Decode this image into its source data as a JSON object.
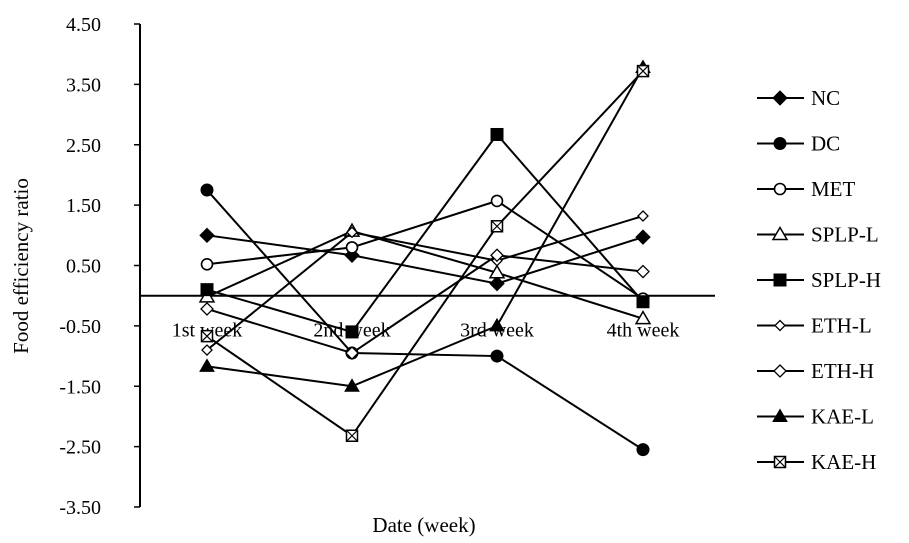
{
  "chart_data": {
    "type": "line",
    "title": "",
    "xlabel": "Date (week)",
    "ylabel": "Food efficiency ratio",
    "ylim": [
      -3.5,
      4.5
    ],
    "yticks": [
      -3.5,
      -2.5,
      -1.5,
      -0.5,
      0.5,
      1.5,
      2.5,
      3.5,
      4.5
    ],
    "ytick_labels": [
      "-3.50",
      "-2.50",
      "-1.50",
      "-0.50",
      "0.50",
      "1.50",
      "2.50",
      "3.50",
      "4.50"
    ],
    "categories": [
      "1st week",
      "2nd week",
      "3rd week",
      "4th week"
    ],
    "legend_position": "right",
    "grid": false,
    "series": [
      {
        "name": "NC",
        "marker": "diamond-filled",
        "values": [
          1.0,
          0.67,
          0.2,
          0.97
        ]
      },
      {
        "name": "DC",
        "marker": "circle-filled",
        "values": [
          1.75,
          -0.95,
          -1.0,
          -2.55
        ]
      },
      {
        "name": "MET",
        "marker": "circle-open",
        "values": [
          0.52,
          0.8,
          1.57,
          -0.05
        ]
      },
      {
        "name": "SPLP-L",
        "marker": "triangle-open",
        "values": [
          -0.02,
          1.07,
          0.38,
          -0.38
        ]
      },
      {
        "name": "SPLP-H",
        "marker": "square-filled",
        "values": [
          0.1,
          -0.6,
          2.67,
          -0.1
        ]
      },
      {
        "name": "ETH-L",
        "marker": "diamond-open-small",
        "values": [
          -0.9,
          1.05,
          0.58,
          1.32
        ]
      },
      {
        "name": "ETH-H",
        "marker": "diamond-open",
        "values": [
          -0.22,
          -0.95,
          0.67,
          0.4
        ]
      },
      {
        "name": "KAE-L",
        "marker": "triangle-filled",
        "values": [
          -1.17,
          -1.5,
          -0.5,
          3.78
        ]
      },
      {
        "name": "KAE-H",
        "marker": "square-crossed",
        "values": [
          -0.67,
          -2.32,
          1.15,
          3.72
        ]
      }
    ]
  }
}
